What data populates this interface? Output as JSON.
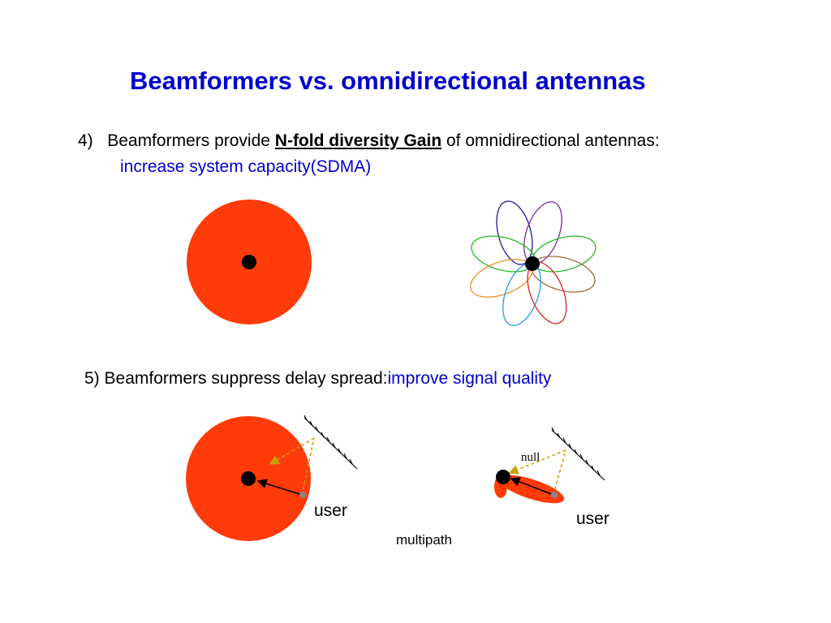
{
  "title": "Beamformers vs. omnidirectional antennas",
  "point4": {
    "number": "4)",
    "text_before": "Beamformers provide ",
    "emphasis": "N-fold diversity Gain",
    "text_after": " of omnidirectional antennas:",
    "subline": "increase system capacity(SDMA)"
  },
  "point5": {
    "text": "5) Beamformers suppress delay spread:",
    "highlight": "improve signal quality"
  },
  "diagram": {
    "user_left": "user",
    "user_right": "user",
    "null_label": "null",
    "multipath_label": "multipath"
  }
}
